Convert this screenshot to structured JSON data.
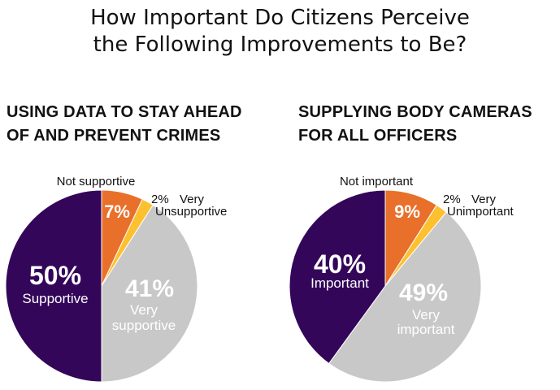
{
  "title_lines": [
    "How Important Do Citizens Perceive",
    "the Following Improvements to Be?"
  ],
  "colors": {
    "dark_purple": "#33065a",
    "orange": "#e8702a",
    "yellow": "#fdc02f",
    "gray": "#c8c8c8"
  },
  "chart_data": [
    {
      "type": "pie",
      "title_lines": [
        "USING DATA TO STAY AHEAD",
        "OF AND PREVENT CRIMES"
      ],
      "slices": [
        {
          "label": "Not supportive",
          "value": 7,
          "value_text": "7%",
          "color": "#e8702a",
          "label_lines": [
            "Not supportive"
          ]
        },
        {
          "label": "Very Unsupportive",
          "value": 2,
          "value_text": "2%",
          "color": "#fdc02f",
          "label_lines": [
            "Very",
            "Unsupportive"
          ]
        },
        {
          "label": "Very supportive",
          "value": 41,
          "value_text": "41%",
          "color": "#c8c8c8",
          "label_lines": [
            "Very",
            "supportive"
          ]
        },
        {
          "label": "Supportive",
          "value": 50,
          "value_text": "50%",
          "color": "#33065a",
          "label_lines": [
            "Supportive"
          ]
        }
      ]
    },
    {
      "type": "pie",
      "title_lines": [
        "SUPPLYING BODY CAMERAS",
        "FOR ALL OFFICERS"
      ],
      "slices": [
        {
          "label": "Not important",
          "value": 9,
          "value_text": "9%",
          "color": "#e8702a",
          "label_lines": [
            "Not important"
          ]
        },
        {
          "label": "Very Unimportant",
          "value": 2,
          "value_text": "2%",
          "color": "#fdc02f",
          "label_lines": [
            "Very",
            "Unimportant"
          ]
        },
        {
          "label": "Very important",
          "value": 49,
          "value_text": "49%",
          "color": "#c8c8c8",
          "label_lines": [
            "Very",
            "important"
          ]
        },
        {
          "label": "Important",
          "value": 40,
          "value_text": "40%",
          "color": "#33065a",
          "label_lines": [
            "Important"
          ]
        }
      ]
    }
  ]
}
